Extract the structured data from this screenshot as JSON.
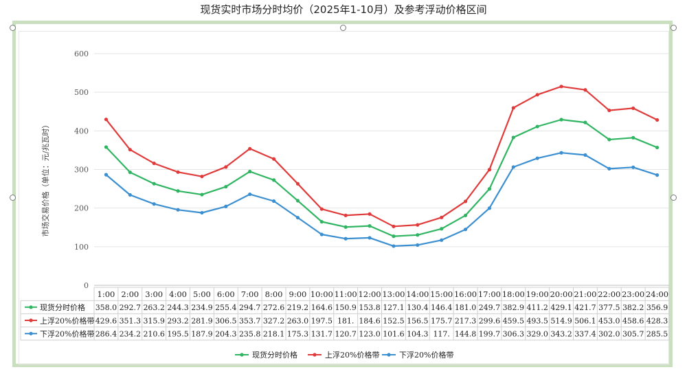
{
  "title": "现货实时市场分时均价（2025年1-10月）及参考浮动价格区间",
  "chart_data": {
    "type": "line",
    "ylabel": "市场交易价格（单位：元/兆瓦时）",
    "xlabel": "",
    "ylim": [
      0,
      600
    ],
    "yticks": [
      "0",
      "100",
      "200",
      "300",
      "400",
      "500",
      "600"
    ],
    "grid": "horizontal",
    "legend_position": "bottom",
    "categories": [
      "1:00",
      "2:00",
      "3:00",
      "4:00",
      "5:00",
      "6:00",
      "7:00",
      "8:00",
      "9:00",
      "10:00",
      "11:00",
      "12:00",
      "13:00",
      "14:00",
      "15:00",
      "16:00",
      "17:00",
      "18:00",
      "19:00",
      "20:00",
      "21:00",
      "22:00",
      "23:00",
      "24:00"
    ],
    "series": [
      {
        "name": "现货分时价格",
        "color": "#2fb561",
        "values": [
          358.0,
          292.7,
          263.2,
          244.3,
          234.9,
          255.4,
          294.7,
          272.6,
          219.2,
          164.6,
          150.9,
          153.8,
          127.1,
          130.4,
          146.4,
          181.0,
          249.7,
          382.9,
          411.2,
          429.1,
          421.7,
          377.5,
          382.2,
          356.9
        ],
        "labels": [
          "358.0",
          "292.7",
          "263.2",
          "244.3",
          "234.9",
          "255.4",
          "294.7",
          "272.6",
          "219.2",
          "164.6",
          "150.9",
          "153.8",
          "127.1",
          "130.4",
          "146.4",
          "181.0",
          "249.7",
          "382.9",
          "411.2",
          "429.1",
          "421.7",
          "377.5",
          "382.2",
          "356.9"
        ]
      },
      {
        "name": "上浮20%价格带",
        "color": "#e03a3a",
        "values": [
          429.6,
          351.3,
          315.9,
          293.2,
          281.9,
          306.5,
          353.7,
          327.2,
          263.0,
          197.5,
          181.0,
          184.6,
          152.5,
          156.5,
          175.7,
          217.3,
          299.6,
          459.5,
          493.5,
          514.9,
          506.1,
          453.0,
          458.6,
          428.3
        ],
        "labels": [
          "429.6",
          "351.3",
          "315.9",
          "293.2",
          "281.9",
          "306.5",
          "353.7",
          "327.2",
          "263.0",
          "197.5",
          "181.",
          "184.6",
          "152.5",
          "156.5",
          "175.7",
          "217.3",
          "299.6",
          "459.5",
          "493.5",
          "514.9",
          "506.1",
          "453.0",
          "458.6",
          "428.3"
        ]
      },
      {
        "name": "下浮20%价格带",
        "color": "#3b8fd0",
        "values": [
          286.4,
          234.2,
          210.6,
          195.5,
          187.9,
          204.3,
          235.8,
          218.1,
          175.3,
          131.7,
          120.7,
          123.0,
          101.6,
          104.3,
          117.0,
          144.8,
          199.7,
          306.3,
          329.0,
          343.2,
          337.4,
          302.0,
          305.7,
          285.5
        ],
        "labels": [
          "286.4",
          "234.2",
          "210.6",
          "195.5",
          "187.9",
          "204.3",
          "235.8",
          "218.1",
          "175.3",
          "131.7",
          "120.7",
          "123.0",
          "101.6",
          "104.3",
          "117.",
          "144.8",
          "199.7",
          "306.3",
          "329.0",
          "343.2",
          "337.4",
          "302.0",
          "305.7",
          "285.5"
        ]
      }
    ]
  }
}
